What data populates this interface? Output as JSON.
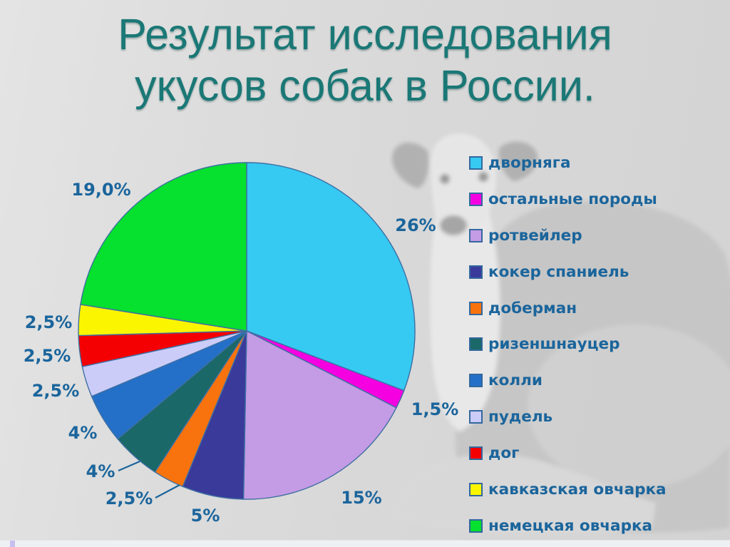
{
  "title": {
    "line1": "Результат исследования",
    "line2": "укусов собак в России."
  },
  "chart_data": {
    "type": "pie",
    "title": "Результат исследования укусов собак в России.",
    "legend_position": "right",
    "start_angle": "12 o'clock",
    "direction": "clockwise",
    "slices": [
      {
        "label": "дворняга",
        "value": 26,
        "value_label": "26%",
        "color": "#36C9F2"
      },
      {
        "label": "остальные породы",
        "value": 1.5,
        "value_label": "1,5%",
        "color": "#F500E0"
      },
      {
        "label": "ротвейлер",
        "value": 15,
        "value_label": "15%",
        "color": "#C49BE5"
      },
      {
        "label": "кокер спаниель",
        "value": 5,
        "value_label": "5%",
        "color": "#3A3A9A"
      },
      {
        "label": "доберман",
        "value": 2.5,
        "value_label": "2,5%",
        "color": "#F8730D"
      },
      {
        "label": "ризеншнауцер",
        "value": 4,
        "value_label": "4%",
        "color": "#1A6868"
      },
      {
        "label": "колли",
        "value": 4,
        "value_label": "4%",
        "color": "#2470C8"
      },
      {
        "label": "пудель",
        "value": 2.5,
        "value_label": "2,5%",
        "color": "#CCCCF8"
      },
      {
        "label": "дог",
        "value": 2.5,
        "value_label": "2,5%",
        "color": "#F50002"
      },
      {
        "label": "кавказская овчарка",
        "value": 2.5,
        "value_label": "2,5%",
        "color": "#FCF500"
      },
      {
        "label": "немецкая овчарка",
        "value": 19,
        "value_label": "19,0%",
        "color": "#06E02E"
      }
    ]
  },
  "colors": {
    "title_text": "#1A7876",
    "label_text": "#1B659C",
    "slice_border": "#3E6FA3",
    "swatch_border": "#33689E",
    "background": "#D9D9D9",
    "footer_strip": "#EFF0F3",
    "footer_accent": "#C6BFEE"
  }
}
